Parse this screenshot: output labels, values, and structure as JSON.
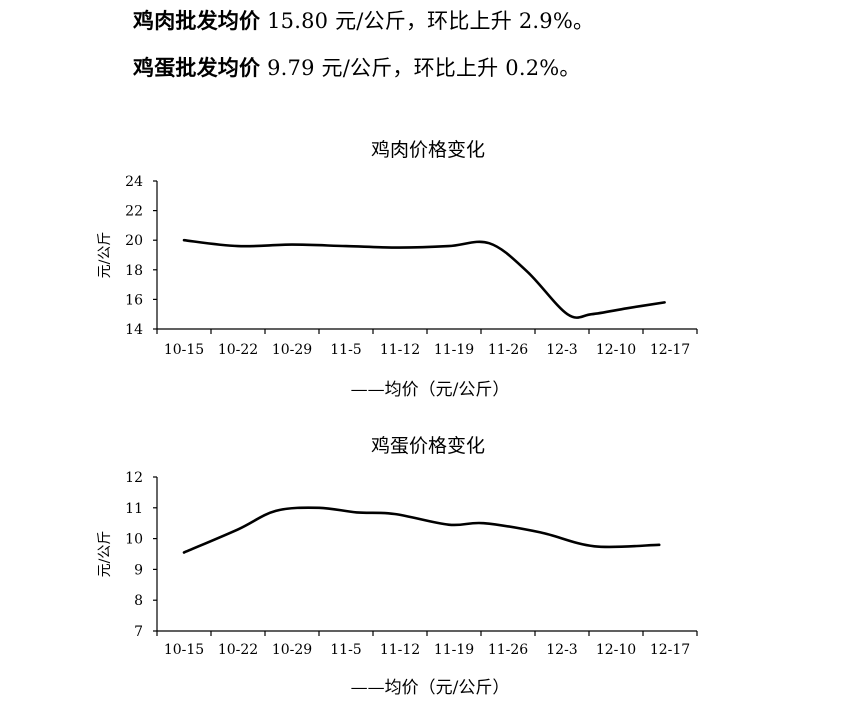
{
  "summary": [
    {
      "lead": "鸡肉批发均价",
      "rest": " 15.80 元/公斤，环比上升 2.9%。"
    },
    {
      "lead": "鸡蛋批发均价",
      "rest": " 9.79 元/公斤，环比上升 0.2%。"
    }
  ],
  "chart_data": [
    {
      "type": "line",
      "title": "鸡肉价格变化",
      "ylabel": "元/公斤",
      "xlabel": "",
      "categories": [
        "10-15",
        "10-22",
        "10-29",
        "11-5",
        "11-12",
        "11-19",
        "11-26",
        "12-3",
        "12-10",
        "12-17"
      ],
      "ylim": [
        14,
        24
      ],
      "yticks": [
        14,
        16,
        18,
        20,
        22,
        24
      ],
      "legend": "——均价（元/公斤）",
      "legend_position": "bottom",
      "grid": false,
      "x": [
        0,
        1,
        2,
        3,
        4,
        4.9,
        5.65,
        6.35,
        7.1,
        7.55,
        8.2,
        8.9
      ],
      "values": [
        20.0,
        19.6,
        19.7,
        19.6,
        19.5,
        19.6,
        19.8,
        17.9,
        15.0,
        15.0,
        15.4,
        15.8
      ]
    },
    {
      "type": "line",
      "title": "鸡蛋价格变化",
      "ylabel": "元/公斤",
      "xlabel": "",
      "categories": [
        "10-15",
        "10-22",
        "10-29",
        "11-5",
        "11-12",
        "11-19",
        "11-26",
        "12-3",
        "12-10",
        "12-17"
      ],
      "ylim": [
        7,
        12
      ],
      "yticks": [
        7,
        8,
        9,
        10,
        11,
        12
      ],
      "legend": "——均价（元/公斤）",
      "legend_position": "bottom",
      "grid": false,
      "x": [
        0,
        1,
        1.7,
        2.5,
        3.2,
        3.9,
        4.9,
        5.55,
        6.6,
        7.6,
        8.8
      ],
      "values": [
        9.55,
        10.3,
        10.9,
        11.0,
        10.85,
        10.8,
        10.45,
        10.5,
        10.2,
        9.75,
        9.8
      ]
    }
  ]
}
